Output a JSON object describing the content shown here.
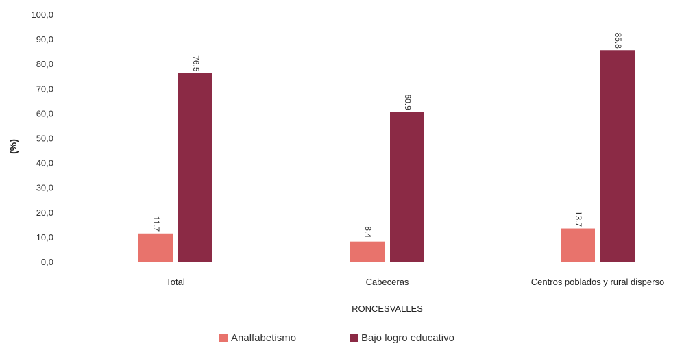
{
  "chart_data": {
    "type": "bar",
    "title": "",
    "xlabel": "RONCESVALLES",
    "ylabel": "(%)",
    "ylim": [
      0,
      100
    ],
    "yticks": [
      "100,0",
      "90,0",
      "80,0",
      "70,0",
      "60,0",
      "50,0",
      "40,0",
      "30,0",
      "20,0",
      "10,0",
      "0,0"
    ],
    "ytick_values": [
      100,
      90,
      80,
      70,
      60,
      50,
      40,
      30,
      20,
      10,
      0
    ],
    "categories": [
      "Total",
      "Cabeceras",
      "Centros poblados y rural disperso"
    ],
    "series": [
      {
        "name": "Analfabetismo",
        "color": "#e8736c",
        "values": [
          11.7,
          8.4,
          13.7
        ],
        "labels": [
          "11.7",
          "8.4",
          "13.7"
        ]
      },
      {
        "name": "Bajo logro educativo",
        "color": "#8b2a45",
        "values": [
          76.5,
          60.9,
          85.8
        ],
        "labels": [
          "76.5",
          "60.9",
          "85.8"
        ]
      }
    ],
    "grid": false,
    "legend_position": "bottom"
  }
}
